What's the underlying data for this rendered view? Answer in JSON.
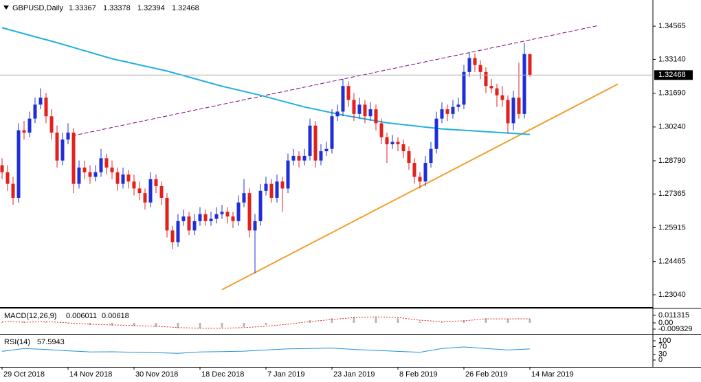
{
  "chart_data": [
    {
      "type": "candlestick",
      "title": "GBPUSD,Daily",
      "bull_color": "#1f2fd8",
      "bear_color": "#e3211c",
      "categories": [
        "29 Oct 2018",
        null,
        null,
        null,
        null,
        null,
        null,
        null,
        null,
        null,
        null,
        null,
        "14 Nov 2018",
        null,
        null,
        null,
        null,
        null,
        null,
        null,
        null,
        null,
        null,
        null,
        "30 Nov 2018",
        null,
        null,
        null,
        null,
        null,
        null,
        null,
        null,
        null,
        null,
        null,
        "18 Dec 2018",
        null,
        null,
        null,
        null,
        null,
        null,
        null,
        null,
        null,
        null,
        null,
        "7 Jan 2019",
        null,
        null,
        null,
        null,
        null,
        null,
        null,
        null,
        null,
        null,
        null,
        "23 Jan 2019",
        null,
        null,
        null,
        null,
        null,
        null,
        null,
        null,
        null,
        null,
        null,
        "8 Feb 2019",
        null,
        null,
        null,
        null,
        null,
        null,
        null,
        null,
        null,
        null,
        null,
        "26 Feb 2019",
        null,
        null,
        null,
        null,
        null,
        null,
        null,
        null,
        null,
        null,
        null,
        "14 Mar 2019"
      ],
      "candles": [
        [
          1.286,
          1.289,
          1.28,
          1.283
        ],
        [
          1.283,
          1.286,
          1.275,
          1.278
        ],
        [
          1.278,
          1.281,
          1.269,
          1.272
        ],
        [
          1.272,
          1.304,
          1.27,
          1.301
        ],
        [
          1.301,
          1.305,
          1.297,
          1.3
        ],
        [
          1.3,
          1.309,
          1.298,
          1.306
        ],
        [
          1.306,
          1.315,
          1.304,
          1.312
        ],
        [
          1.312,
          1.319,
          1.31,
          1.315
        ],
        [
          1.315,
          1.317,
          1.304,
          1.307
        ],
        [
          1.307,
          1.31,
          1.297,
          1.3
        ],
        [
          1.3,
          1.303,
          1.285,
          1.288
        ],
        [
          1.288,
          1.3,
          1.286,
          1.297
        ],
        [
          1.297,
          1.304,
          1.295,
          1.3
        ],
        [
          1.3,
          1.302,
          1.274,
          1.278
        ],
        [
          1.278,
          1.288,
          1.276,
          1.285
        ],
        [
          1.285,
          1.288,
          1.28,
          1.283
        ],
        [
          1.283,
          1.286,
          1.278,
          1.281
        ],
        [
          1.281,
          1.286,
          1.279,
          1.283
        ],
        [
          1.283,
          1.293,
          1.281,
          1.289
        ],
        [
          1.289,
          1.291,
          1.282,
          1.285
        ],
        [
          1.285,
          1.288,
          1.28,
          1.283
        ],
        [
          1.283,
          1.285,
          1.275,
          1.278
        ],
        [
          1.278,
          1.285,
          1.276,
          1.282
        ],
        [
          1.282,
          1.284,
          1.276,
          1.279
        ],
        [
          1.279,
          1.282,
          1.273,
          1.276
        ],
        [
          1.276,
          1.279,
          1.271,
          1.274
        ],
        [
          1.274,
          1.276,
          1.267,
          1.27
        ],
        [
          1.27,
          1.283,
          1.268,
          1.28
        ],
        [
          1.28,
          1.282,
          1.274,
          1.277
        ],
        [
          1.277,
          1.279,
          1.269,
          1.272
        ],
        [
          1.272,
          1.274,
          1.255,
          1.258
        ],
        [
          1.258,
          1.26,
          1.25,
          1.253
        ],
        [
          1.253,
          1.265,
          1.251,
          1.262
        ],
        [
          1.262,
          1.267,
          1.26,
          1.264
        ],
        [
          1.264,
          1.266,
          1.256,
          1.258
        ],
        [
          1.258,
          1.265,
          1.256,
          1.262
        ],
        [
          1.262,
          1.268,
          1.26,
          1.265
        ],
        [
          1.265,
          1.267,
          1.26,
          1.262
        ],
        [
          1.262,
          1.266,
          1.26,
          1.263
        ],
        [
          1.263,
          1.268,
          1.261,
          1.265
        ],
        [
          1.265,
          1.269,
          1.263,
          1.266
        ],
        [
          1.266,
          1.268,
          1.261,
          1.264
        ],
        [
          1.264,
          1.266,
          1.259,
          1.262
        ],
        [
          1.262,
          1.273,
          1.26,
          1.27
        ],
        [
          1.27,
          1.28,
          1.268,
          1.274
        ],
        [
          1.274,
          1.276,
          1.255,
          1.258
        ],
        [
          1.258,
          1.265,
          1.2395,
          1.262
        ],
        [
          1.262,
          1.278,
          1.26,
          1.275
        ],
        [
          1.275,
          1.281,
          1.273,
          1.278
        ],
        [
          1.278,
          1.28,
          1.27,
          1.272
        ],
        [
          1.272,
          1.282,
          1.27,
          1.279
        ],
        [
          1.279,
          1.281,
          1.266,
          1.276
        ],
        [
          1.276,
          1.291,
          1.274,
          1.288
        ],
        [
          1.288,
          1.293,
          1.286,
          1.29
        ],
        [
          1.29,
          1.292,
          1.285,
          1.288
        ],
        [
          1.288,
          1.293,
          1.286,
          1.29
        ],
        [
          1.29,
          1.306,
          1.288,
          1.303
        ],
        [
          1.303,
          1.305,
          1.285,
          1.288
        ],
        [
          1.288,
          1.295,
          1.286,
          1.292
        ],
        [
          1.292,
          1.296,
          1.29,
          1.293
        ],
        [
          1.293,
          1.31,
          1.291,
          1.307
        ],
        [
          1.307,
          1.312,
          1.305,
          1.309
        ],
        [
          1.309,
          1.323,
          1.307,
          1.32
        ],
        [
          1.32,
          1.322,
          1.311,
          1.314
        ],
        [
          1.314,
          1.317,
          1.305,
          1.308
        ],
        [
          1.308,
          1.315,
          1.306,
          1.312
        ],
        [
          1.312,
          1.314,
          1.304,
          1.307
        ],
        [
          1.307,
          1.313,
          1.305,
          1.31
        ],
        [
          1.31,
          1.312,
          1.301,
          1.304
        ],
        [
          1.304,
          1.306,
          1.295,
          1.298
        ],
        [
          1.298,
          1.3,
          1.287,
          1.295
        ],
        [
          1.295,
          1.299,
          1.293,
          1.296
        ],
        [
          1.296,
          1.298,
          1.292,
          1.295
        ],
        [
          1.295,
          1.297,
          1.289,
          1.292
        ],
        [
          1.292,
          1.294,
          1.284,
          1.287
        ],
        [
          1.287,
          1.289,
          1.278,
          1.281
        ],
        [
          1.281,
          1.283,
          1.276,
          1.279
        ],
        [
          1.279,
          1.29,
          1.277,
          1.287
        ],
        [
          1.287,
          1.296,
          1.285,
          1.293
        ],
        [
          1.293,
          1.309,
          1.291,
          1.306
        ],
        [
          1.306,
          1.313,
          1.304,
          1.31
        ],
        [
          1.31,
          1.312,
          1.305,
          1.308
        ],
        [
          1.308,
          1.314,
          1.306,
          1.311
        ],
        [
          1.311,
          1.315,
          1.309,
          1.312
        ],
        [
          1.312,
          1.329,
          1.31,
          1.326
        ],
        [
          1.326,
          1.3345,
          1.324,
          1.332
        ],
        [
          1.332,
          1.334,
          1.326,
          1.329
        ],
        [
          1.329,
          1.331,
          1.323,
          1.326
        ],
        [
          1.326,
          1.328,
          1.317,
          1.32
        ],
        [
          1.32,
          1.323,
          1.317,
          1.319
        ],
        [
          1.319,
          1.321,
          1.311,
          1.316
        ],
        [
          1.316,
          1.32,
          1.311,
          1.314
        ],
        [
          1.314,
          1.316,
          1.2995,
          1.304
        ],
        [
          1.304,
          1.318,
          1.301,
          1.315
        ],
        [
          1.315,
          1.33,
          1.306,
          1.308
        ],
        [
          1.308,
          1.3385,
          1.306,
          1.3337
        ],
        [
          1.33367,
          1.33378,
          1.32394,
          1.32468
        ]
      ],
      "ma": {
        "color": "#1fb0e0",
        "x": [
          0,
          10,
          20,
          30,
          40,
          47,
          55,
          62,
          70,
          80,
          90,
          96
        ],
        "values": [
          1.345,
          1.3386,
          1.3317,
          1.3264,
          1.3199,
          1.316,
          1.311,
          1.3075,
          1.3042,
          1.3016,
          1.3001,
          1.2992
        ]
      },
      "trendlines": [
        {
          "color": "#800080",
          "dashed": true,
          "x": [
            12.75,
            108.4
          ],
          "values": [
            1.2986,
            1.3459
          ]
        },
        {
          "color": "#f0a030",
          "dashed": false,
          "x": [
            40,
            112
          ],
          "values": [
            1.2326,
            1.3208
          ]
        }
      ],
      "xlim": [
        -0.375,
        118.375
      ],
      "ylim": [
        1.2251,
        1.3569
      ],
      "yticks": [
        1.34565,
        {
          "value": 1.3314,
          "label": "1.33140"
        },
        {
          "value": 1.3169,
          "label": "1.31690"
        },
        {
          "value": 1.3024,
          "label": "1.30240"
        },
        {
          "value": 1.2879,
          "label": "1.28790"
        },
        1.27365,
        1.25915,
        1.24465,
        {
          "value": 1.2304,
          "label": "1.23040"
        }
      ]
    },
    {
      "type": "macd",
      "title": "MACD(12,26,9)",
      "color": "#b8b8b8",
      "signal_color": "#e3211c",
      "x": [
        0,
        4,
        8,
        12,
        16,
        20,
        24,
        28,
        32,
        36,
        40,
        44,
        48,
        52,
        56,
        60,
        64,
        68,
        72,
        76,
        80,
        84,
        88,
        92,
        96
      ],
      "values": [
        0.001,
        0.002,
        0.001,
        -0.001,
        -0.003,
        -0.004,
        -0.005,
        -0.006,
        -0.008,
        -0.008,
        -0.007,
        -0.006,
        -0.003,
        0.0,
        0.004,
        0.007,
        0.009,
        0.009,
        0.007,
        0.002,
        0.001,
        0.004,
        0.007,
        0.006,
        0.006011
      ],
      "signal": [
        0.002,
        0.001,
        0.002,
        0.0,
        -0.002,
        -0.003,
        -0.004,
        -0.005,
        -0.007,
        -0.008,
        -0.008,
        -0.007,
        -0.005,
        -0.002,
        0.002,
        0.005,
        0.008,
        0.009,
        0.008,
        0.004,
        0.002,
        0.003,
        0.006,
        0.006,
        0.00618
      ],
      "ylim": [
        -0.0155,
        0.0216
      ],
      "yticks": [
        0.011315,
        {
          "value": 0,
          "label": "0.00"
        },
        -0.009329
      ]
    },
    {
      "type": "line",
      "title": "RSI(14)",
      "color": "#1e8fe0",
      "x": [
        0,
        4,
        8,
        12,
        16,
        20,
        24,
        28,
        32,
        36,
        40,
        44,
        48,
        52,
        56,
        60,
        64,
        68,
        72,
        76,
        80,
        84,
        88,
        92,
        96
      ],
      "values": [
        45,
        60,
        55,
        48,
        42,
        43,
        40,
        38,
        35,
        42,
        44,
        46,
        52,
        58,
        60,
        62,
        55,
        50,
        45,
        40,
        60,
        68,
        60,
        52,
        57.5943
      ],
      "ylim": [
        -32,
        132
      ],
      "yticks": [
        100,
        70,
        30,
        0
      ]
    }
  ]
}
